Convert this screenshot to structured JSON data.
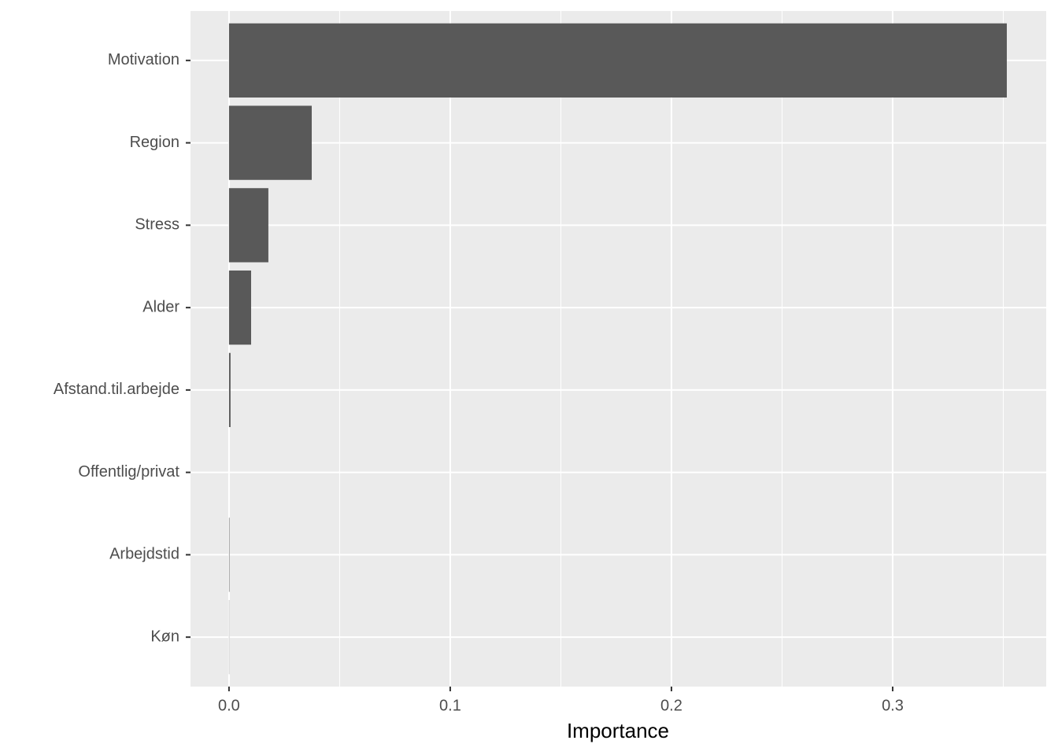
{
  "chart_data": {
    "type": "bar",
    "orientation": "horizontal",
    "x_label": "Importance",
    "categories": [
      "Motivation",
      "Region",
      "Stress",
      "Alder",
      "Afstand.til.arbejde",
      "Offentlig/privat",
      "Arbejdstid",
      "Køn"
    ],
    "values": [
      0.3516,
      0.0374,
      0.0178,
      0.01,
      0.0007,
      0,
      0.0002,
      0.0001
    ],
    "color": "#595959",
    "xlim": [
      -0.0174,
      0.3694
    ],
    "xticks": [
      {
        "value": 0,
        "label": "0.0"
      },
      0.1,
      0.2,
      0.3
    ],
    "grid": true
  }
}
